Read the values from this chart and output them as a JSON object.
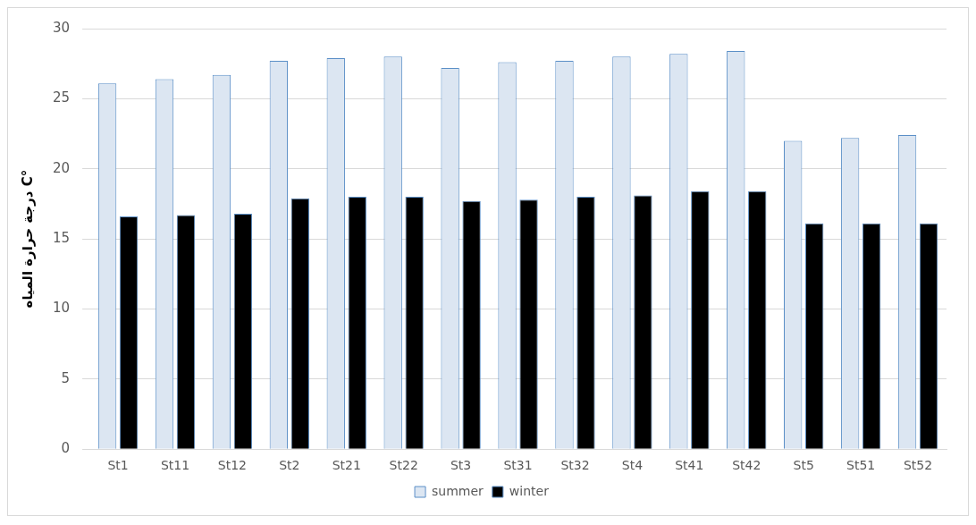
{
  "chart_data": {
    "type": "bar",
    "ylabel": "درجة حرارة المياه C°",
    "categories": [
      "St1",
      "St11",
      "St12",
      "St2",
      "St21",
      "St22",
      "St3",
      "St31",
      "St32",
      "St4",
      "St41",
      "St42",
      "St5",
      "St51",
      "St52"
    ],
    "series": [
      {
        "name": "summer",
        "color": "#dce6f2",
        "values": [
          26.1,
          26.4,
          26.7,
          27.7,
          27.9,
          28.0,
          27.2,
          27.6,
          27.7,
          28.0,
          28.2,
          28.4,
          22.0,
          22.2,
          22.4
        ]
      },
      {
        "name": "winter",
        "color": "#000000",
        "values": [
          16.6,
          16.7,
          16.8,
          17.9,
          18.0,
          18.0,
          17.7,
          17.8,
          18.0,
          18.1,
          18.4,
          18.4,
          16.1,
          16.1,
          16.1
        ]
      }
    ],
    "ylim": [
      0,
      30
    ],
    "yticks": [
      0,
      5,
      10,
      15,
      20,
      25,
      30
    ],
    "grid": "y",
    "legend": "bottom"
  }
}
